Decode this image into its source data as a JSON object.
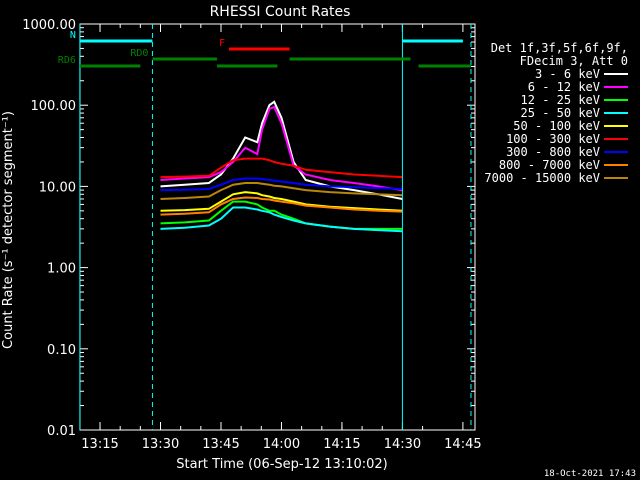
{
  "chart_data": {
    "type": "line",
    "title": "RHESSI Count Rates",
    "xlabel": "Start Time (06-Sep-12 13:10:02)",
    "ylabel": "Count Rate (s⁻¹ detector segment⁻¹)",
    "yscale": "log",
    "ylim": [
      0.01,
      1000
    ],
    "xlim": [
      "13:10:02",
      "14:48"
    ],
    "x_ticks": [
      "13:15",
      "13:30",
      "13:45",
      "14:00",
      "14:15",
      "14:30",
      "14:45"
    ],
    "y_ticks": [
      "0.01",
      "0.10",
      "1.00",
      "10.00",
      "100.00",
      "1000.00"
    ],
    "grid": false,
    "legend_position": "right",
    "legend_header": [
      "Det 1f,3f,5f,6f,9f,",
      "FDecim 3, Att 0"
    ],
    "footer_date": "18-Oct-2021 17:43",
    "x_hours": [
      13.5,
      13.6,
      13.7,
      13.75,
      13.8,
      13.85,
      13.9,
      13.92,
      13.95,
      13.97,
      14.0,
      14.05,
      14.1,
      14.2,
      14.3,
      14.4,
      14.5
    ],
    "series": [
      {
        "name": "3 - 6 keV",
        "color": "#ffffff",
        "values": [
          10,
          10.5,
          11,
          14,
          22,
          40,
          35,
          60,
          100,
          110,
          70,
          20,
          12,
          10,
          9,
          8,
          7
        ]
      },
      {
        "name": "6 - 12 keV",
        "color": "#ff00ff",
        "values": [
          12,
          12.5,
          13,
          15,
          20,
          30,
          25,
          50,
          90,
          95,
          60,
          18,
          14,
          12,
          11,
          10,
          9
        ]
      },
      {
        "name": "12 - 25 keV",
        "color": "#00ff00",
        "values": [
          3.5,
          3.6,
          3.8,
          5,
          6.5,
          6.5,
          6,
          5.5,
          5,
          5,
          4.5,
          4,
          3.5,
          3.2,
          3,
          3,
          3
        ]
      },
      {
        "name": "25 - 50 keV",
        "color": "#00ffff",
        "values": [
          3,
          3.1,
          3.3,
          4,
          5.5,
          5.5,
          5.2,
          5,
          4.8,
          4.5,
          4.2,
          3.8,
          3.5,
          3.2,
          3.0,
          2.9,
          2.8
        ]
      },
      {
        "name": "50 - 100 keV",
        "color": "#ffff00",
        "values": [
          5,
          5.1,
          5.3,
          6.5,
          8,
          8.5,
          8.2,
          7.8,
          7.5,
          7.2,
          7,
          6.5,
          6,
          5.6,
          5.4,
          5.2,
          5
        ]
      },
      {
        "name": "100 - 300 keV",
        "color": "#ff0000",
        "values": [
          13,
          13.2,
          13.5,
          17,
          21,
          22,
          22,
          22,
          21,
          20,
          19,
          18,
          16,
          15,
          14,
          13.5,
          13
        ]
      },
      {
        "name": "300 - 800 keV",
        "color": "#0000ff",
        "values": [
          9,
          9.1,
          9.3,
          10.5,
          12,
          12.5,
          12.5,
          12.3,
          12,
          11.8,
          11.5,
          11,
          10.5,
          10,
          9.8,
          9.5,
          9.3
        ]
      },
      {
        "name": "800 - 7000 keV",
        "color": "#ff8000",
        "values": [
          4.5,
          4.6,
          4.8,
          6,
          7,
          7.3,
          7.2,
          7,
          6.9,
          6.7,
          6.5,
          6.2,
          5.8,
          5.5,
          5.2,
          5,
          4.9
        ]
      },
      {
        "name": "7000 - 15000 keV",
        "color": "#b8860b",
        "values": [
          7,
          7.2,
          7.5,
          9,
          10.5,
          11,
          11,
          10.8,
          10.5,
          10.2,
          10,
          9.5,
          9,
          8.5,
          8.2,
          8,
          7.8
        ]
      }
    ],
    "attenuator_bars": [
      {
        "label": "N",
        "color": "#00ffff",
        "segments": [
          [
            "13:10",
            "13:28"
          ],
          [
            "14:30",
            "14:45"
          ]
        ]
      },
      {
        "label": "F",
        "color": "#ff0000",
        "segments": [
          [
            "13:47",
            "14:02"
          ]
        ]
      },
      {
        "label": "RD0",
        "color": "#008000",
        "segments": [
          [
            "13:28",
            "13:44"
          ],
          [
            "14:02",
            "14:32"
          ]
        ]
      },
      {
        "label": "RD6",
        "color": "#008000",
        "segments": [
          [
            "13:10",
            "13:25"
          ],
          [
            "13:44",
            "13:59"
          ],
          [
            "14:34",
            "14:47"
          ]
        ]
      }
    ],
    "vertical_markers": [
      {
        "time": "13:10",
        "color": "#00ffff",
        "style": "solid"
      },
      {
        "time": "13:28",
        "color": "#00ffff",
        "style": "dashed"
      },
      {
        "time": "14:30",
        "color": "#00ffff",
        "style": "solid"
      },
      {
        "time": "14:47",
        "color": "#00ffff",
        "style": "dashed"
      }
    ]
  }
}
